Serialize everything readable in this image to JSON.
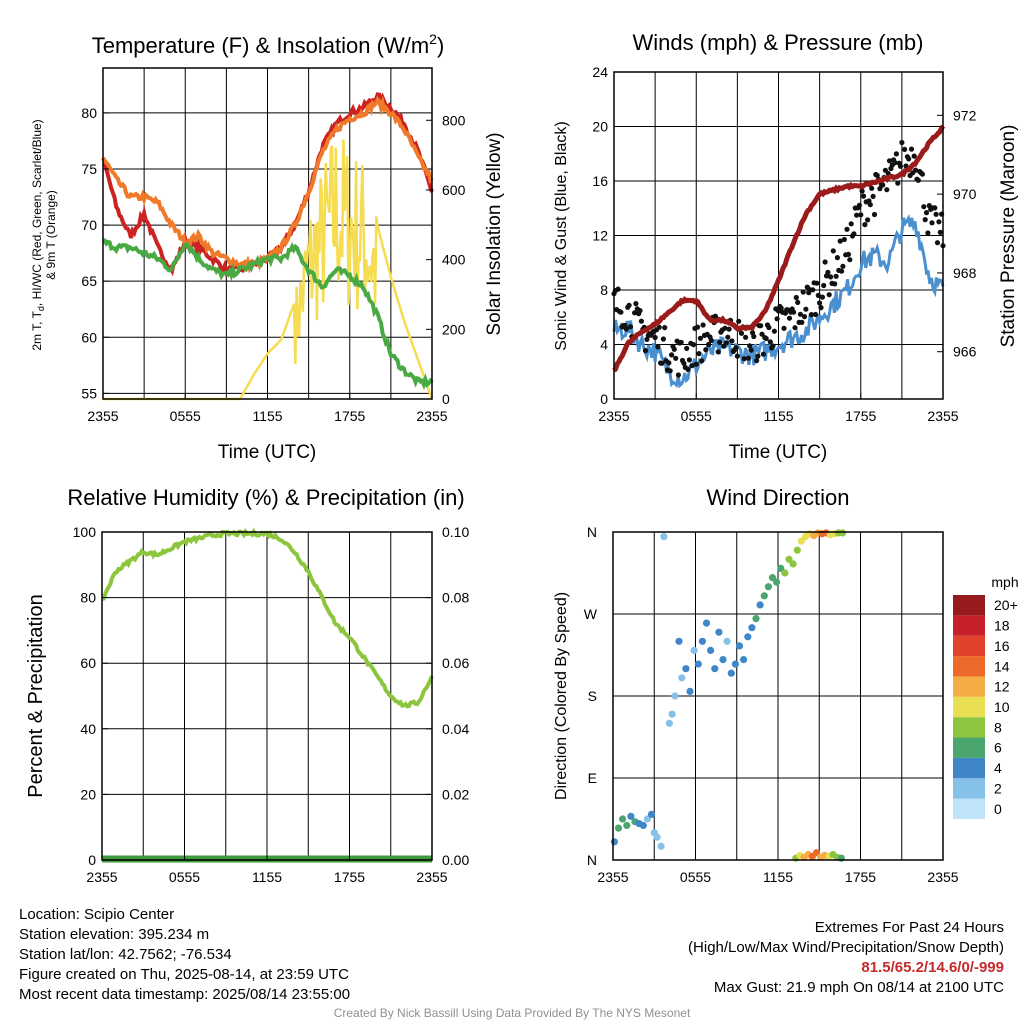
{
  "chart_data": [
    {
      "type": "line",
      "title": "Temperature (F) & Insolation (W/m²)",
      "xlabel": "Time (UTC)",
      "ylabel_left_line1": "2m T, Td, HI/WC (Red, Green, Scarlet/Blue)",
      "ylabel_left_line2": "& 9m T (Orange)",
      "ylabel_right": "Solar Insolation (Yellow)",
      "x_ticks": [
        "2355",
        "0555",
        "1155",
        "1755",
        "2355"
      ],
      "y_left_ticks": [
        55,
        60,
        65,
        70,
        75,
        80
      ],
      "y_right_ticks": [
        0,
        200,
        400,
        600,
        800
      ],
      "ylim_left": [
        54.5,
        84
      ],
      "ylim_right": [
        0,
        950
      ],
      "x_hours": [
        0,
        1,
        2,
        3,
        4,
        5,
        6,
        7,
        8,
        9,
        10,
        11,
        12,
        13,
        14,
        15,
        16,
        17,
        18,
        19,
        20,
        21,
        22,
        23,
        24
      ],
      "series": [
        {
          "name": "2m T",
          "color": "#cc2222",
          "values": [
            76,
            71.5,
            69,
            71,
            68,
            66,
            68.5,
            68,
            67,
            66,
            66,
            66.5,
            67,
            68,
            70,
            73,
            77,
            79,
            80,
            80.5,
            81.5,
            80.5,
            79,
            76.5,
            73
          ]
        },
        {
          "name": "9m T",
          "color": "#f07a2a",
          "values": [
            76,
            74,
            72.5,
            72.5,
            72,
            70,
            68.5,
            69,
            67.5,
            67,
            66.5,
            66.5,
            67,
            68,
            70,
            73,
            76.5,
            78.5,
            79.5,
            80,
            81,
            80,
            78.5,
            76,
            74
          ]
        },
        {
          "name": "Td",
          "color": "#49a942",
          "values": [
            68.5,
            68,
            68,
            67.5,
            67,
            66,
            68.5,
            67,
            66,
            65.5,
            66,
            66.5,
            67,
            67,
            68,
            66,
            64.5,
            66,
            65.5,
            64.5,
            62,
            58.5,
            57,
            56,
            56
          ]
        },
        {
          "name": "Solar Insolation",
          "color": "#f5dc50",
          "axis": "right",
          "values": [
            0,
            0,
            0,
            0,
            0,
            0,
            0,
            0,
            0,
            0,
            0,
            70,
            130,
            170,
            280,
            520,
            620,
            740,
            680,
            640,
            500,
            350,
            220,
            110,
            0
          ]
        }
      ],
      "insolation_spikes_note": "",
      "ylabel_left_sub": "d"
    },
    {
      "type": "scatter",
      "title": "Winds (mph) & Pressure (mb)",
      "xlabel": "Time (UTC)",
      "ylabel_left": "Sonic Wind & Gust (Blue, Black)",
      "ylabel_right": "Station Pressure (Maroon)",
      "x_ticks": [
        "2355",
        "0555",
        "1155",
        "1755",
        "2355"
      ],
      "y_left_ticks": [
        0,
        4,
        8,
        12,
        16,
        20,
        24
      ],
      "y_right_ticks": [
        966,
        968,
        970,
        972
      ],
      "ylim_left": [
        0,
        24
      ],
      "ylim_right": [
        964.8,
        973.1
      ],
      "x_hours": [
        0,
        1,
        2,
        3,
        4,
        5,
        6,
        7,
        8,
        9,
        10,
        11,
        12,
        13,
        14,
        15,
        16,
        17,
        18,
        19,
        20,
        21,
        22,
        23,
        24
      ],
      "series": [
        {
          "name": "Sonic Wind",
          "color": "#4a90d0",
          "values": [
            5,
            5.2,
            4,
            3.5,
            2,
            1.5,
            2.5,
            3.5,
            3.8,
            3.5,
            3.2,
            3.5,
            4,
            4.5,
            5,
            6,
            7,
            8,
            10,
            10.5,
            10,
            12.5,
            13,
            9,
            8
          ]
        },
        {
          "name": "Gust",
          "color": "#111111",
          "values": [
            7,
            6.5,
            5,
            4.5,
            3.5,
            3,
            4,
            4.5,
            5,
            4.5,
            4,
            4.5,
            5.5,
            6,
            7,
            8,
            9.5,
            11,
            14,
            15,
            16,
            17.5,
            18,
            13,
            12
          ]
        },
        {
          "name": "Station Pressure",
          "color": "#9b1b1b",
          "axis": "right",
          "values": [
            965.5,
            966.2,
            966.5,
            966.7,
            967,
            967.3,
            967.3,
            966.8,
            966.8,
            966.6,
            966.6,
            967,
            967.8,
            968.7,
            969.5,
            970,
            970.1,
            970.2,
            970.2,
            970.3,
            970.4,
            970.5,
            970.8,
            971.3,
            971.7
          ]
        }
      ]
    },
    {
      "type": "line",
      "title": "Relative Humidity (%) & Precipitation (in)",
      "ylabel_left": "Percent & Precipitation",
      "x_ticks": [
        "2355",
        "0555",
        "1155",
        "1755",
        "2355"
      ],
      "y_left_ticks": [
        0,
        20,
        40,
        60,
        80,
        100
      ],
      "y_right_ticks": [
        "0.00",
        "0.02",
        "0.04",
        "0.06",
        "0.08",
        "0.10"
      ],
      "ylim_left": [
        0,
        100
      ],
      "x_hours": [
        0,
        1,
        2,
        3,
        4,
        5,
        6,
        7,
        8,
        9,
        10,
        11,
        12,
        13,
        14,
        15,
        16,
        17,
        18,
        19,
        20,
        21,
        22,
        23,
        24
      ],
      "series": [
        {
          "name": "Relative Humidity",
          "color": "#8cc63e",
          "values": [
            79,
            88,
            91,
            94,
            93,
            95,
            97,
            98,
            99,
            99.5,
            99.5,
            99.5,
            99.5,
            98,
            94,
            88,
            80,
            72,
            68,
            62,
            56,
            50,
            47,
            48,
            56
          ]
        },
        {
          "name": "Precipitation",
          "color": "#3c9a3c",
          "values": [
            0,
            0,
            0,
            0,
            0,
            0,
            0,
            0,
            0,
            0,
            0,
            0,
            0,
            0,
            0,
            0,
            0,
            0,
            0,
            0,
            0,
            0,
            0,
            0,
            0
          ]
        }
      ]
    },
    {
      "type": "scatter",
      "title": "Wind Direction",
      "ylabel_left": "Direction (Colored By Speed)",
      "x_ticks": [
        "2355",
        "0555",
        "1155",
        "1755",
        "2355"
      ],
      "y_ticks": [
        "N",
        "E",
        "S",
        "W",
        "N"
      ],
      "ylim": [
        0,
        360
      ],
      "legend_title": "mph",
      "legend_labels": [
        "0",
        "2",
        "4",
        "6",
        "8",
        "10",
        "12",
        "14",
        "16",
        "18",
        "20+"
      ],
      "legend_colors": [
        "#bfe4f7",
        "#86c1e8",
        "#3f87c8",
        "#4aa66e",
        "#8cc63e",
        "#e8e052",
        "#f6ac45",
        "#ee6a2b",
        "#e0422b",
        "#c8202a",
        "#961a1e"
      ],
      "points": [
        {
          "x": 0.1,
          "dir": 20,
          "speed": 4
        },
        {
          "x": 0.4,
          "dir": 35,
          "speed": 5
        },
        {
          "x": 0.7,
          "dir": 45,
          "speed": 6
        },
        {
          "x": 1.0,
          "dir": 38,
          "speed": 5
        },
        {
          "x": 1.3,
          "dir": 48,
          "speed": 4
        },
        {
          "x": 1.6,
          "dir": 42,
          "speed": 5
        },
        {
          "x": 1.9,
          "dir": 40,
          "speed": 3
        },
        {
          "x": 2.2,
          "dir": 38,
          "speed": 4
        },
        {
          "x": 2.5,
          "dir": 45,
          "speed": 2
        },
        {
          "x": 2.8,
          "dir": 50,
          "speed": 3
        },
        {
          "x": 3.0,
          "dir": 30,
          "speed": 2
        },
        {
          "x": 3.2,
          "dir": 25,
          "speed": 1
        },
        {
          "x": 3.5,
          "dir": 15,
          "speed": 1
        },
        {
          "x": 3.7,
          "dir": 355,
          "speed": 1
        },
        {
          "x": 4.1,
          "dir": 150,
          "speed": 1
        },
        {
          "x": 4.3,
          "dir": 160,
          "speed": 2
        },
        {
          "x": 4.5,
          "dir": 180,
          "speed": 2
        },
        {
          "x": 4.8,
          "dir": 240,
          "speed": 3
        },
        {
          "x": 5.0,
          "dir": 200,
          "speed": 2
        },
        {
          "x": 5.3,
          "dir": 210,
          "speed": 3
        },
        {
          "x": 5.6,
          "dir": 185,
          "speed": 3
        },
        {
          "x": 5.9,
          "dir": 230,
          "speed": 2
        },
        {
          "x": 6.2,
          "dir": 215,
          "speed": 3
        },
        {
          "x": 6.5,
          "dir": 240,
          "speed": 4
        },
        {
          "x": 6.8,
          "dir": 260,
          "speed": 4
        },
        {
          "x": 7.1,
          "dir": 230,
          "speed": 3
        },
        {
          "x": 7.4,
          "dir": 210,
          "speed": 4
        },
        {
          "x": 7.7,
          "dir": 250,
          "speed": 3
        },
        {
          "x": 8.0,
          "dir": 220,
          "speed": 4
        },
        {
          "x": 8.3,
          "dir": 240,
          "speed": 2
        },
        {
          "x": 8.6,
          "dir": 205,
          "speed": 4
        },
        {
          "x": 8.9,
          "dir": 215,
          "speed": 3
        },
        {
          "x": 9.2,
          "dir": 235,
          "speed": 4
        },
        {
          "x": 9.5,
          "dir": 220,
          "speed": 4
        },
        {
          "x": 9.8,
          "dir": 245,
          "speed": 3
        },
        {
          "x": 10.1,
          "dir": 255,
          "speed": 4
        },
        {
          "x": 10.4,
          "dir": 265,
          "speed": 5
        },
        {
          "x": 10.7,
          "dir": 280,
          "speed": 4
        },
        {
          "x": 11.0,
          "dir": 290,
          "speed": 5
        },
        {
          "x": 11.3,
          "dir": 300,
          "speed": 6
        },
        {
          "x": 11.6,
          "dir": 310,
          "speed": 5
        },
        {
          "x": 11.9,
          "dir": 305,
          "speed": 6
        },
        {
          "x": 12.2,
          "dir": 320,
          "speed": 6
        },
        {
          "x": 12.5,
          "dir": 315,
          "speed": 7
        },
        {
          "x": 12.8,
          "dir": 330,
          "speed": 7
        },
        {
          "x": 13.1,
          "dir": 325,
          "speed": 8
        },
        {
          "x": 13.4,
          "dir": 340,
          "speed": 8
        },
        {
          "x": 13.7,
          "dir": 350,
          "speed": 9
        },
        {
          "x": 14.0,
          "dir": 355,
          "speed": 10
        },
        {
          "x": 14.3,
          "dir": 358,
          "speed": 10
        },
        {
          "x": 14.6,
          "dir": 356,
          "speed": 11
        },
        {
          "x": 14.9,
          "dir": 359,
          "speed": 12
        },
        {
          "x": 15.2,
          "dir": 358,
          "speed": 13
        },
        {
          "x": 15.5,
          "dir": 359,
          "speed": 14
        },
        {
          "x": 15.8,
          "dir": 357,
          "speed": 10
        },
        {
          "x": 16.1,
          "dir": 358,
          "speed": 9
        },
        {
          "x": 16.4,
          "dir": 359,
          "speed": 8
        },
        {
          "x": 16.7,
          "dir": 359,
          "speed": 8
        },
        {
          "x": 13.3,
          "dir": 2,
          "speed": 8
        },
        {
          "x": 13.6,
          "dir": 5,
          "speed": 10
        },
        {
          "x": 13.9,
          "dir": 3,
          "speed": 11
        },
        {
          "x": 14.2,
          "dir": 6,
          "speed": 12
        },
        {
          "x": 14.5,
          "dir": 4,
          "speed": 13
        },
        {
          "x": 14.8,
          "dir": 8,
          "speed": 14
        },
        {
          "x": 15.1,
          "dir": 3,
          "speed": 12
        },
        {
          "x": 15.4,
          "dir": 5,
          "speed": 11
        },
        {
          "x": 15.7,
          "dir": 4,
          "speed": 10
        },
        {
          "x": 16.0,
          "dir": 6,
          "speed": 8
        },
        {
          "x": 16.3,
          "dir": 3,
          "speed": 7
        },
        {
          "x": 16.6,
          "dir": 2,
          "speed": 6
        }
      ]
    }
  ],
  "panels": {
    "temp": {
      "title_main": "Temperature (F) & Insolation (W/m",
      "title_sup": "2",
      "title_close": ")",
      "ylabel_line1_a": "2m T, T",
      "ylabel_line1_sub": "d",
      "ylabel_line1_b": ", HI/WC (Red, Green, Scarlet/Blue)",
      "ylabel_line2": "& 9m T (Orange)",
      "ylabel_right": "Solar Insolation (Yellow)",
      "xlabel": "Time (UTC)"
    },
    "wind": {
      "title": "Winds (mph) & Pressure (mb)",
      "ylabel_left": "Sonic Wind & Gust (Blue, Black)",
      "ylabel_right": "Station Pressure (Maroon)",
      "xlabel": "Time (UTC)"
    },
    "rh": {
      "title": "Relative Humidity (%) & Precipitation (in)",
      "ylabel_left": "Percent & Precipitation"
    },
    "dir": {
      "title": "Wind Direction",
      "ylabel_left": "Direction (Colored By Speed)",
      "legend_title": "mph"
    }
  },
  "station_info": {
    "location": "Location: Scipio Center",
    "elevation": "Station elevation: 395.234 m",
    "latlon": "Station lat/lon: 42.7562; -76.534",
    "created": "Figure created on Thu, 2025-08-14, at 23:59 UTC",
    "recent": "Most recent data timestamp: 2025/08/14 23:55:00"
  },
  "extremes": {
    "title": "Extremes For Past 24 Hours",
    "subtitle": "(High/Low/Max Wind/Precipitation/Snow Depth)",
    "values": "81.5/65.2/14.6/0/-999",
    "max_gust": "Max Gust: 21.9 mph On 08/14 at 2100 UTC"
  },
  "credit": "Created By Nick Bassill Using Data Provided By The NYS Mesonet"
}
